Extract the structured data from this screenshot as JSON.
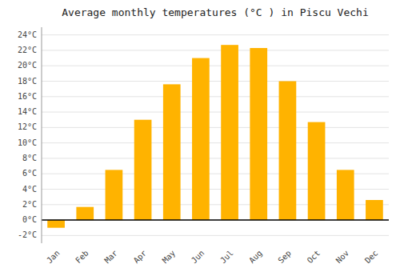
{
  "chart_data": {
    "type": "bar",
    "title": "Average monthly temperatures (°C ) in Piscu Vechi",
    "categories": [
      "Jan",
      "Feb",
      "Mar",
      "Apr",
      "May",
      "Jun",
      "Jul",
      "Aug",
      "Sep",
      "Oct",
      "Nov",
      "Dec"
    ],
    "values": [
      -1.0,
      1.7,
      6.5,
      13.0,
      17.6,
      21.0,
      22.7,
      22.3,
      18.0,
      12.7,
      6.5,
      2.6
    ],
    "color": "#FFB300",
    "ylim": [
      -3,
      25
    ],
    "yticks": [
      {
        "value": -2,
        "label": "-2°C"
      },
      {
        "value": 0,
        "label": "0°C"
      },
      {
        "value": 2,
        "label": "2°C"
      },
      {
        "value": 4,
        "label": "4°C"
      },
      {
        "value": 6,
        "label": "6°C"
      },
      {
        "value": 8,
        "label": "8°C"
      },
      {
        "value": 10,
        "label": "10°C"
      },
      {
        "value": 12,
        "label": "12°C"
      },
      {
        "value": 14,
        "label": "14°C"
      },
      {
        "value": 16,
        "label": "16°C"
      },
      {
        "value": 18,
        "label": "18°C"
      },
      {
        "value": 20,
        "label": "20°C"
      },
      {
        "value": 22,
        "label": "22°C"
      },
      {
        "value": 24,
        "label": "24°C"
      }
    ],
    "grid": true
  }
}
